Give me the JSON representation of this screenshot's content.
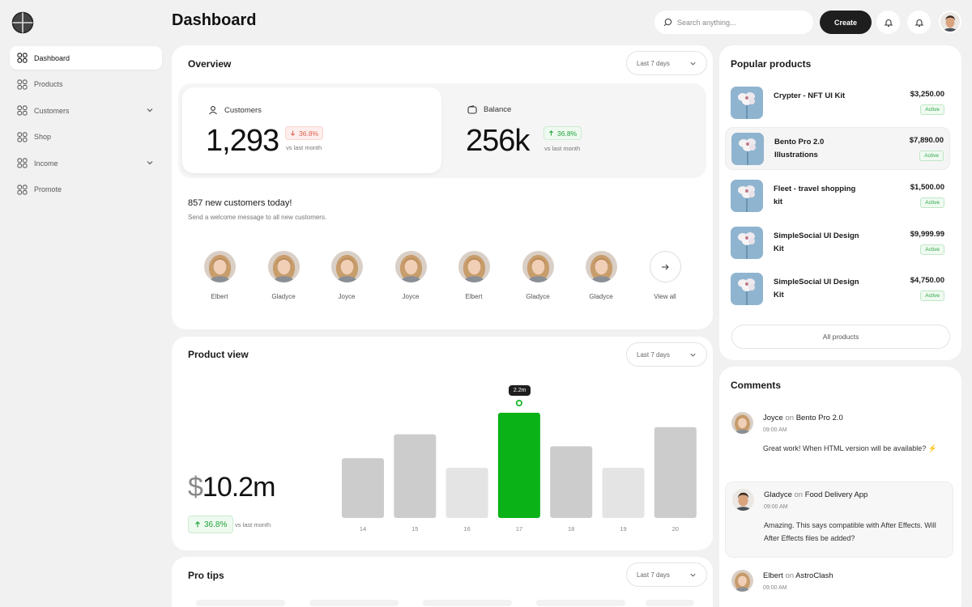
{
  "header": {
    "title": "Dashboard",
    "search_placeholder": "Search anything...",
    "create_label": "Create",
    "icons": [
      "bell-icon",
      "bell-icon"
    ]
  },
  "sidebar": {
    "items": [
      {
        "label": "Dashboard",
        "icon": "grid-icon",
        "active": true,
        "expandable": false
      },
      {
        "label": "Products",
        "icon": "grid-icon",
        "active": false,
        "expandable": false
      },
      {
        "label": "Customers",
        "icon": "grid-icon",
        "active": false,
        "expandable": true
      },
      {
        "label": "Shop",
        "icon": "grid-icon",
        "active": false,
        "expandable": false
      },
      {
        "label": "Income",
        "icon": "grid-icon",
        "active": false,
        "expandable": true
      },
      {
        "label": "Promote",
        "icon": "grid-icon",
        "active": false,
        "expandable": false
      }
    ]
  },
  "overview": {
    "title": "Overview",
    "range": "Last 7 days",
    "customers": {
      "label": "Customers",
      "value": "1,293",
      "change": "36.8%",
      "direction": "down",
      "vs": "vs last month"
    },
    "balance": {
      "label": "Balance",
      "value": "256k",
      "change": "36.8%",
      "direction": "up",
      "vs": "vs last month"
    },
    "new_title": "857 new customers today!",
    "new_sub": "Send a welcome message to all new customers.",
    "customers_list": [
      "Elbert",
      "Gladyce",
      "Joyce",
      "Joyce",
      "Elbert",
      "Gladyce",
      "Gladyce"
    ],
    "view_all": "View all"
  },
  "product_view": {
    "title": "Product view",
    "range": "Last 7 days",
    "amount_symbol": "$",
    "amount": "10.2m",
    "change": "36.8%",
    "vs": "vs last month",
    "tooltip": "2.2m"
  },
  "chart_data": {
    "type": "bar",
    "categories": [
      "14",
      "15",
      "16",
      "17",
      "18",
      "19",
      "20"
    ],
    "values": [
      1.25,
      1.75,
      1.05,
      2.2,
      1.5,
      1.05,
      1.9
    ],
    "highlight_index": 3,
    "colors": {
      "bar": "#cccccc",
      "light": "#e4e4e4",
      "highlight": "#0ab218"
    },
    "ylim": [
      0,
      2.2
    ],
    "grid": false
  },
  "popular": {
    "title": "Popular products",
    "items": [
      {
        "name": "Crypter - NFT UI Kit",
        "price": "$3,250.00",
        "status": "Active",
        "highlight": false
      },
      {
        "name": "Bento Pro 2.0 Illustrations",
        "price": "$7,890.00",
        "status": "Active",
        "highlight": true
      },
      {
        "name": "Fleet - travel shopping kit",
        "price": "$1,500.00",
        "status": "Active",
        "highlight": false
      },
      {
        "name": "SimpleSocial UI Design Kit",
        "price": "$9,999.99",
        "status": "Active",
        "highlight": false
      },
      {
        "name": "SimpleSocial UI Design Kit",
        "price": "$4,750.00",
        "status": "Active",
        "highlight": false
      }
    ],
    "all_label": "All products"
  },
  "comments": {
    "title": "Comments",
    "on_word": "on",
    "items": [
      {
        "author": "Joyce",
        "target": "Bento Pro 2.0",
        "time": "09:00 AM",
        "text": "Great work! When HTML version will be available? ⚡"
      },
      {
        "author": "Gladyce",
        "target": "Food Delivery App",
        "time": "09:00 AM",
        "text": "Amazing. This says compatible with After Effects. Will After Effects files be added?"
      },
      {
        "author": "Elbert",
        "target": "AstroClash",
        "time": "09:00 AM",
        "text": ""
      }
    ]
  },
  "pro_tips": {
    "title": "Pro tips",
    "range": "Last 7 days"
  }
}
